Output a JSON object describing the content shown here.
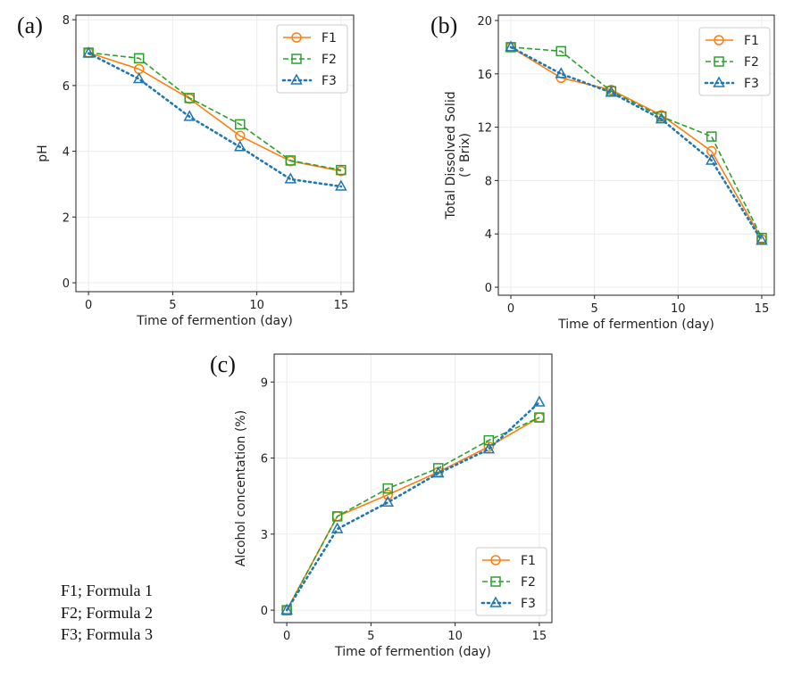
{
  "panel_labels": [
    "(a)",
    "(b)",
    "(c)"
  ],
  "footnote": [
    "F1; Formula 1",
    "F2; Formula 2",
    "F3; Formula 3"
  ],
  "colors": {
    "F1": "#ff7f0e",
    "F2": "#2ca02c",
    "F3": "#1f77b4"
  },
  "chart_data": [
    {
      "type": "line",
      "panel": "(a)",
      "x": [
        0,
        3,
        6,
        9,
        12,
        15
      ],
      "xlabel": "Time of fermention (day)",
      "ylabel": [
        "pH"
      ],
      "xlim": [
        -0.75,
        15.75
      ],
      "ylim": [
        -0.27,
        8.14
      ],
      "xticks": [
        0,
        5,
        10,
        15
      ],
      "yticks": [
        0,
        2,
        4,
        6,
        8
      ],
      "grid": true,
      "legend": "top-right",
      "series": [
        {
          "name": "F1",
          "marker": "circle",
          "linestyle": "solid",
          "values": [
            7.0,
            6.5,
            5.6,
            4.47,
            3.7,
            3.4
          ]
        },
        {
          "name": "F2",
          "marker": "square",
          "linestyle": "dashed",
          "values": [
            7.0,
            6.83,
            5.62,
            4.82,
            3.72,
            3.43
          ]
        },
        {
          "name": "F3",
          "marker": "triangle",
          "linestyle": "dotted",
          "values": [
            6.98,
            6.2,
            5.05,
            4.13,
            3.15,
            2.93
          ]
        }
      ]
    },
    {
      "type": "line",
      "panel": "(b)",
      "x": [
        0,
        3,
        6,
        9,
        12,
        15
      ],
      "xlabel": "Time of fermention (day)",
      "ylabel": [
        "Total Dissolved Solid",
        "(° Brix)"
      ],
      "xlim": [
        -0.75,
        15.75
      ],
      "ylim": [
        -0.6,
        20.4
      ],
      "xticks": [
        0,
        5,
        10,
        15
      ],
      "yticks": [
        0,
        4,
        8,
        12,
        16,
        20
      ],
      "grid": true,
      "legend": "top-right",
      "series": [
        {
          "name": "F1",
          "marker": "circle",
          "linestyle": "solid",
          "values": [
            18.0,
            15.7,
            14.8,
            12.9,
            10.2,
            3.6
          ]
        },
        {
          "name": "F2",
          "marker": "square",
          "linestyle": "dashed",
          "values": [
            18.0,
            17.7,
            14.7,
            12.8,
            11.3,
            3.7
          ]
        },
        {
          "name": "F3",
          "marker": "triangle",
          "linestyle": "dotted",
          "values": [
            18.0,
            16.0,
            14.6,
            12.6,
            9.5,
            3.5
          ]
        }
      ]
    },
    {
      "type": "line",
      "panel": "(c)",
      "x": [
        0,
        3,
        6,
        9,
        12,
        15
      ],
      "xlabel": "Time of fermention (day)",
      "ylabel": [
        "Alcohol concentation (%)"
      ],
      "xlim": [
        -0.75,
        15.75
      ],
      "ylim": [
        -0.49,
        10.1
      ],
      "xticks": [
        0,
        5,
        10,
        15
      ],
      "yticks": [
        0,
        3,
        6,
        9
      ],
      "grid": true,
      "legend": "bottom-right",
      "series": [
        {
          "name": "F1",
          "marker": "circle",
          "linestyle": "solid",
          "values": [
            0,
            3.7,
            4.55,
            5.45,
            6.45,
            7.6
          ]
        },
        {
          "name": "F2",
          "marker": "square",
          "linestyle": "dashed",
          "values": [
            0,
            3.7,
            4.8,
            5.6,
            6.7,
            7.6
          ]
        },
        {
          "name": "F3",
          "marker": "triangle",
          "linestyle": "dotted",
          "values": [
            0,
            3.2,
            4.25,
            5.4,
            6.35,
            8.2
          ]
        }
      ]
    }
  ]
}
